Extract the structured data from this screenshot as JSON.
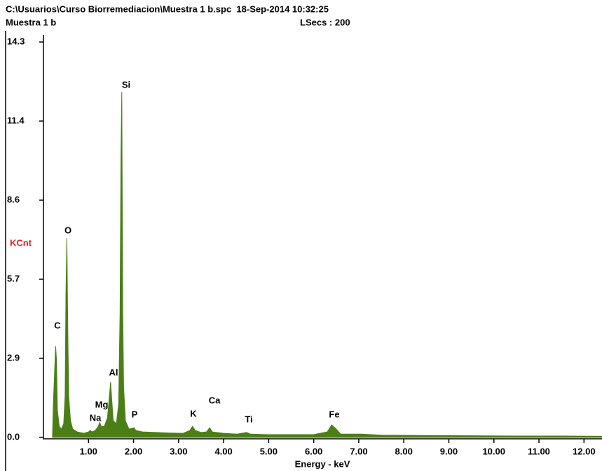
{
  "chart_data": {
    "type": "area",
    "title": "C:\\Usuarios\\Curso Biorremediacion\\Muestra 1 b.spc  18-Sep-2014 10:32:25",
    "subtitle": "Muestra 1 b",
    "info": "LSecs : 200",
    "y_label": "KCnt",
    "x_label": "Energy - keV",
    "y_label_color": "#e02020",
    "color": "#4b7f16",
    "x": [
      0.2,
      0.22,
      0.25,
      0.27,
      0.29,
      0.31,
      0.35,
      0.4,
      0.45,
      0.48,
      0.5,
      0.52,
      0.54,
      0.56,
      0.6,
      0.65,
      0.75,
      0.9,
      1.0,
      1.04,
      1.08,
      1.15,
      1.22,
      1.25,
      1.28,
      1.35,
      1.42,
      1.47,
      1.49,
      1.51,
      1.55,
      1.62,
      1.67,
      1.7,
      1.72,
      1.74,
      1.76,
      1.78,
      1.82,
      1.9,
      2.01,
      2.05,
      2.2,
      2.5,
      2.8,
      3.1,
      3.25,
      3.31,
      3.37,
      3.5,
      3.62,
      3.69,
      3.75,
      4.0,
      4.3,
      4.51,
      4.6,
      5.0,
      5.5,
      6.0,
      6.3,
      6.4,
      6.5,
      6.6,
      7.06,
      7.5,
      8.5,
      9.5,
      10.5,
      11.5,
      12.4
    ],
    "values": [
      0,
      1.2,
      2.5,
      3.3,
      2.8,
      1.0,
      0.4,
      0.3,
      0.5,
      1.5,
      5.2,
      7.2,
      4.0,
      1.5,
      0.6,
      0.3,
      0.2,
      0.15,
      0.2,
      0.25,
      0.2,
      0.25,
      0.4,
      0.55,
      0.4,
      0.4,
      0.7,
      1.6,
      2.0,
      1.5,
      0.6,
      0.5,
      1.2,
      4.5,
      10.2,
      12.5,
      4.6,
      1.8,
      0.6,
      0.3,
      0.35,
      0.25,
      0.2,
      0.18,
      0.16,
      0.15,
      0.25,
      0.4,
      0.25,
      0.18,
      0.2,
      0.35,
      0.2,
      0.15,
      0.12,
      0.18,
      0.12,
      0.1,
      0.1,
      0.1,
      0.2,
      0.45,
      0.3,
      0.12,
      0.12,
      0.08,
      0.07,
      0.06,
      0.05,
      0.05,
      0.04
    ],
    "annotations": [
      "Si",
      "O",
      "C",
      "Al",
      "Mg",
      "Na",
      "P",
      "K",
      "Ca",
      "Ti",
      "Fe"
    ],
    "xlim": [
      0,
      12.4
    ],
    "ylim": [
      0,
      14.3
    ],
    "xticks": [
      {
        "value": 1,
        "label": "1.00"
      },
      {
        "value": 2,
        "label": "2.00"
      },
      {
        "value": 3,
        "label": "3.00"
      },
      {
        "value": 4,
        "label": "4.00"
      },
      {
        "value": 5,
        "label": "5.00"
      },
      {
        "value": 6,
        "label": "6.00"
      },
      {
        "value": 7,
        "label": "7.00"
      },
      {
        "value": 8,
        "label": "8.00"
      },
      {
        "value": 9,
        "label": "9.00"
      },
      {
        "value": 10,
        "label": "10.00"
      },
      {
        "value": 11,
        "label": "11.00"
      },
      {
        "value": 12,
        "label": "12.00"
      }
    ],
    "yticks": [
      {
        "value": 0,
        "label": "0.0"
      },
      {
        "value": 2.86,
        "label": "2.9"
      },
      {
        "value": 5.72,
        "label": "5.7"
      },
      {
        "value": 8.58,
        "label": "8.6"
      },
      {
        "value": 11.44,
        "label": "11.4"
      },
      {
        "value": 14.3,
        "label": "14.3"
      }
    ]
  }
}
